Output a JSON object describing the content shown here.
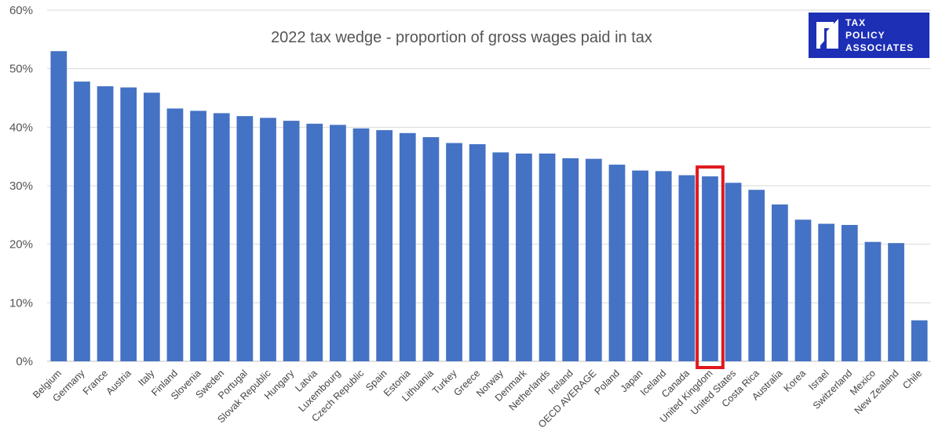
{
  "chart_data": {
    "type": "bar",
    "title": "2022 tax wedge - proportion of gross wages paid in tax",
    "xlabel": "",
    "ylabel": "",
    "ylim": [
      0,
      60
    ],
    "yticks": [
      0,
      10,
      20,
      30,
      40,
      50,
      60
    ],
    "ytick_suffix": "%",
    "grid": true,
    "legend": "none",
    "bar_color": "#4472c4",
    "grid_color": "#d9d9d9",
    "highlight": {
      "category": "United Kingdom",
      "color": "#e0191f"
    },
    "categories": [
      "Belgium",
      "Germany",
      "France",
      "Austria",
      "Italy",
      "Finland",
      "Slovenia",
      "Sweden",
      "Portugal",
      "Slovak Republic",
      "Hungary",
      "Latvia",
      "Luxembourg",
      "Czech Republic",
      "Spain",
      "Estonia",
      "Lithuania",
      "Turkey",
      "Greece",
      "Norway",
      "Denmark",
      "Netherlands",
      "Ireland",
      "OECD AVERAGE",
      "Poland",
      "Japan",
      "Iceland",
      "Canada",
      "United Kingdom",
      "United States",
      "Costa Rica",
      "Australia",
      "Korea",
      "Israel",
      "Switzerland",
      "Mexico",
      "New Zealand",
      "Chile"
    ],
    "values": [
      53.0,
      47.8,
      47.0,
      46.8,
      45.9,
      43.2,
      42.8,
      42.4,
      41.9,
      41.6,
      41.1,
      40.6,
      40.4,
      39.8,
      39.5,
      39.0,
      38.3,
      37.3,
      37.1,
      35.7,
      35.5,
      35.5,
      34.7,
      34.6,
      33.6,
      32.6,
      32.5,
      31.8,
      31.6,
      30.5,
      29.3,
      26.8,
      24.2,
      23.5,
      23.3,
      20.4,
      20.2,
      7.0
    ]
  },
  "logo": {
    "lines": [
      "TAX",
      "POLICY",
      "ASSOCIATES"
    ],
    "background": "#1c2fb5"
  }
}
